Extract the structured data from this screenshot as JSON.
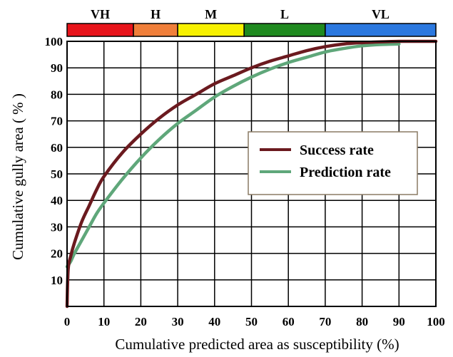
{
  "chart_data": {
    "type": "line",
    "xlabel": "Cumulative predicted area as susceptibility (%)",
    "ylabel": "Cumulative gully area ( % )",
    "xlim": [
      0,
      100
    ],
    "ylim": [
      0,
      100
    ],
    "x_ticks": [
      "0",
      "10",
      "20",
      "30",
      "40",
      "50",
      "60",
      "70",
      "80",
      "90",
      "100"
    ],
    "y_ticks": [
      "10",
      "20",
      "30",
      "40",
      "50",
      "60",
      "70",
      "80",
      "90",
      "100"
    ],
    "grid": true,
    "legend_position": "center-right",
    "susceptibility_classes": [
      {
        "label": "VH",
        "from": 0,
        "to": 18,
        "color": "#e8141b"
      },
      {
        "label": "H",
        "from": 18,
        "to": 30,
        "color": "#f07f3a"
      },
      {
        "label": "M",
        "from": 30,
        "to": 48,
        "color": "#f7f100"
      },
      {
        "label": "L",
        "from": 48,
        "to": 70,
        "color": "#1f8a1f"
      },
      {
        "label": "VL",
        "from": 70,
        "to": 100,
        "color": "#2b78df"
      }
    ],
    "series": [
      {
        "name": "Success rate",
        "color": "#6b1a1f",
        "x": [
          0,
          0.3,
          1,
          2,
          4,
          6,
          8,
          10,
          15,
          20,
          25,
          30,
          35,
          40,
          45,
          50,
          55,
          60,
          65,
          70,
          75,
          80,
          85,
          90,
          95,
          100
        ],
        "y": [
          0,
          14,
          19,
          24,
          32,
          38,
          44,
          49,
          58,
          65,
          71,
          76,
          80,
          84,
          87,
          90,
          92.5,
          94.5,
          96.5,
          98,
          99,
          99.5,
          99.8,
          100,
          100,
          100
        ]
      },
      {
        "name": "Prediction rate",
        "color": "#5fa77a",
        "x": [
          0,
          1,
          2,
          4,
          6,
          8,
          10,
          15,
          20,
          25,
          30,
          35,
          40,
          45,
          50,
          55,
          60,
          65,
          70,
          75,
          80,
          85,
          90
        ],
        "y": [
          15,
          17,
          20,
          25,
          30,
          35,
          39,
          48,
          56,
          63,
          69,
          74,
          79,
          83,
          86.5,
          89.5,
          92,
          94,
          96,
          97.3,
          98.3,
          98.8,
          99
        ]
      }
    ]
  }
}
